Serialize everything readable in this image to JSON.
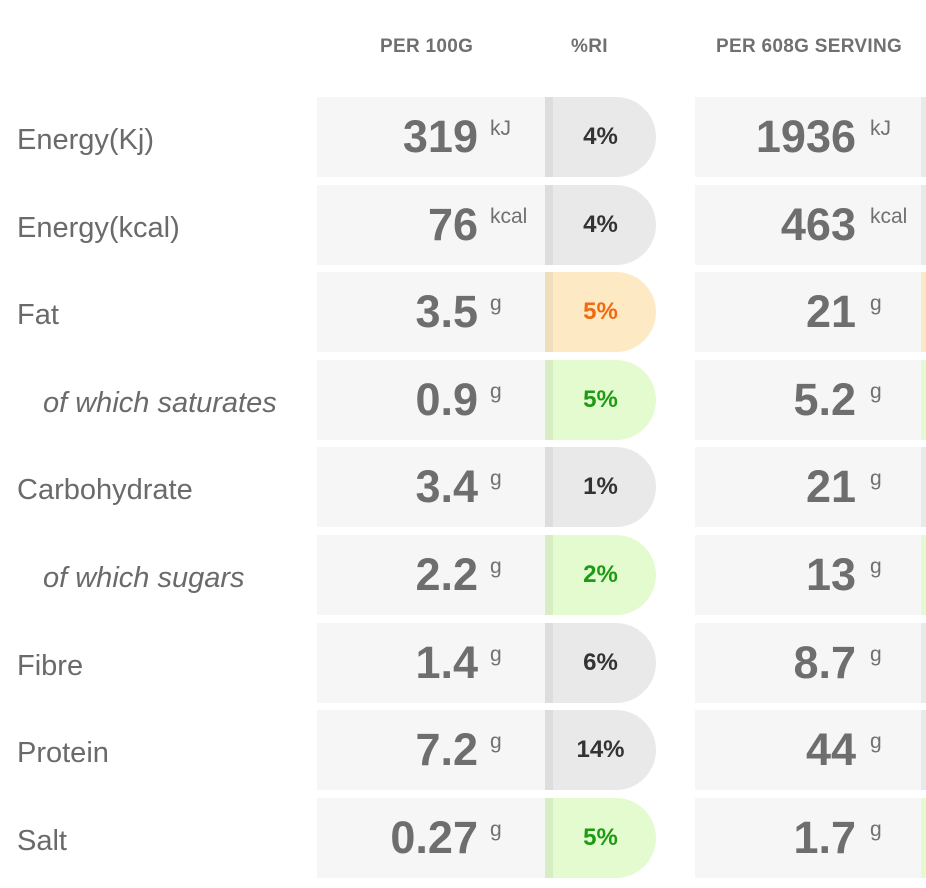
{
  "headers": {
    "per_100g": "PER 100G",
    "ri": "%RI",
    "per_serving": "PER 608G SERVING"
  },
  "colors": {
    "neutral": "#e9e9e9",
    "amber": "#fde9c4",
    "green": "#e3fbcf",
    "amber_text": "#f06a0f",
    "green_text": "#1e9a14"
  },
  "rows": [
    {
      "label": "Energy(Kj)",
      "sub": false,
      "per100": "319",
      "per100_unit": "kJ",
      "ri": "4%",
      "ri_level": "neutral",
      "serving": "1936",
      "serving_unit": "kJ"
    },
    {
      "label": "Energy(kcal)",
      "sub": false,
      "per100": "76",
      "per100_unit": "kcal",
      "ri": "4%",
      "ri_level": "neutral",
      "serving": "463",
      "serving_unit": "kcal"
    },
    {
      "label": "Fat",
      "sub": false,
      "per100": "3.5",
      "per100_unit": "g",
      "ri": "5%",
      "ri_level": "amber",
      "serving": "21",
      "serving_unit": "g"
    },
    {
      "label": "of which saturates",
      "sub": true,
      "per100": "0.9",
      "per100_unit": "g",
      "ri": "5%",
      "ri_level": "green",
      "serving": "5.2",
      "serving_unit": "g"
    },
    {
      "label": "Carbohydrate",
      "sub": false,
      "per100": "3.4",
      "per100_unit": "g",
      "ri": "1%",
      "ri_level": "neutral",
      "serving": "21",
      "serving_unit": "g"
    },
    {
      "label": "of which sugars",
      "sub": true,
      "per100": "2.2",
      "per100_unit": "g",
      "ri": "2%",
      "ri_level": "green",
      "serving": "13",
      "serving_unit": "g"
    },
    {
      "label": "Fibre",
      "sub": false,
      "per100": "1.4",
      "per100_unit": "g",
      "ri": "6%",
      "ri_level": "neutral",
      "serving": "8.7",
      "serving_unit": "g"
    },
    {
      "label": "Protein",
      "sub": false,
      "per100": "7.2",
      "per100_unit": "g",
      "ri": "14%",
      "ri_level": "neutral",
      "serving": "44",
      "serving_unit": "g"
    },
    {
      "label": "Salt",
      "sub": false,
      "per100": "0.27",
      "per100_unit": "g",
      "ri": "5%",
      "ri_level": "green",
      "serving": "1.7",
      "serving_unit": "g"
    }
  ]
}
